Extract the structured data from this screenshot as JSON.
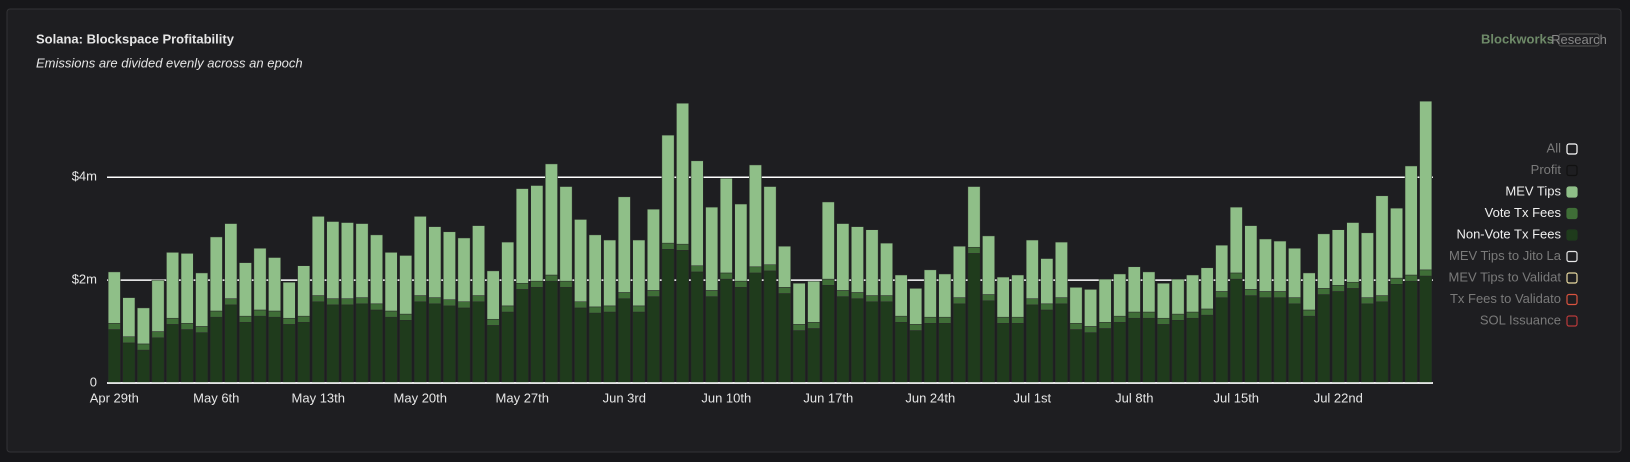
{
  "chart_data": {
    "type": "stacked_bar",
    "title": "Solana: Blockspace Profitability",
    "subtitle": "Emissions are divided evenly across an epoch",
    "brand": "Blockworks",
    "brand_tag": "Research",
    "categories": [
      "Apr 29th",
      null,
      null,
      null,
      null,
      null,
      null,
      "May 6th",
      null,
      null,
      null,
      null,
      null,
      null,
      "May 13th",
      null,
      null,
      null,
      null,
      null,
      null,
      "May 20th",
      null,
      null,
      null,
      null,
      null,
      null,
      "May 27th",
      null,
      null,
      null,
      null,
      null,
      null,
      "Jun 3rd",
      null,
      null,
      null,
      null,
      null,
      null,
      "Jun 10th",
      null,
      null,
      null,
      null,
      null,
      null,
      "Jun 17th",
      null,
      null,
      null,
      null,
      null,
      null,
      "Jun 24th",
      null,
      null,
      null,
      null,
      null,
      null,
      "Jul 1st",
      null,
      null,
      null,
      null,
      null,
      null,
      "Jul 8th",
      null,
      null,
      null,
      null,
      null,
      null,
      "Jul 15th",
      null,
      null,
      null,
      null,
      null,
      null,
      "Jul 22nd",
      null,
      null,
      null,
      null,
      null,
      null
    ],
    "series": [
      {
        "name": "Non-Vote Tx Fees",
        "color": "#1f3b1c",
        "values": [
          1.04,
          0.78,
          0.64,
          0.88,
          1.14,
          1.04,
          0.98,
          1.28,
          1.52,
          1.18,
          1.3,
          1.28,
          1.14,
          1.18,
          1.58,
          1.52,
          1.52,
          1.54,
          1.42,
          1.28,
          1.22,
          1.58,
          1.54,
          1.5,
          1.46,
          1.58,
          1.12,
          1.38,
          1.82,
          1.86,
          1.98,
          1.86,
          1.46,
          1.36,
          1.38,
          1.64,
          1.38,
          1.68,
          2.6,
          2.58,
          2.16,
          1.68,
          2.02,
          1.86,
          2.14,
          2.18,
          1.74,
          1.02,
          1.06,
          1.9,
          1.68,
          1.64,
          1.58,
          1.58,
          1.18,
          1.02,
          1.16,
          1.16,
          1.54,
          2.52,
          1.6,
          1.16,
          1.16,
          1.52,
          1.42,
          1.54,
          1.04,
          0.98,
          1.06,
          1.18,
          1.26,
          1.26,
          1.14,
          1.22,
          1.26,
          1.32,
          1.66,
          2.02,
          1.7,
          1.66,
          1.66,
          1.54,
          1.3,
          1.72,
          1.78,
          1.84,
          1.54,
          1.58,
          1.92,
          1.98,
          2.08
        ]
      },
      {
        "name": "Vote Tx Fees",
        "color": "#3f6e37",
        "values": [
          0.12,
          0.12,
          0.12,
          0.12,
          0.12,
          0.12,
          0.12,
          0.12,
          0.12,
          0.12,
          0.12,
          0.12,
          0.12,
          0.12,
          0.12,
          0.12,
          0.12,
          0.12,
          0.12,
          0.12,
          0.12,
          0.12,
          0.12,
          0.12,
          0.12,
          0.12,
          0.12,
          0.12,
          0.12,
          0.12,
          0.12,
          0.12,
          0.12,
          0.12,
          0.12,
          0.12,
          0.12,
          0.12,
          0.12,
          0.12,
          0.12,
          0.12,
          0.12,
          0.12,
          0.12,
          0.12,
          0.12,
          0.12,
          0.12,
          0.12,
          0.12,
          0.12,
          0.12,
          0.12,
          0.12,
          0.12,
          0.12,
          0.12,
          0.12,
          0.12,
          0.12,
          0.12,
          0.12,
          0.12,
          0.12,
          0.12,
          0.12,
          0.12,
          0.12,
          0.12,
          0.12,
          0.12,
          0.12,
          0.12,
          0.12,
          0.12,
          0.12,
          0.12,
          0.12,
          0.12,
          0.12,
          0.12,
          0.12,
          0.12,
          0.12,
          0.12,
          0.12,
          0.12,
          0.12,
          0.12,
          0.12
        ]
      },
      {
        "name": "MEV Tips",
        "color": "#8fbf88",
        "values": [
          1.0,
          0.76,
          0.7,
          1.0,
          1.28,
          1.36,
          1.04,
          1.44,
          1.46,
          1.04,
          1.2,
          1.04,
          0.7,
          0.98,
          1.54,
          1.5,
          1.48,
          1.44,
          1.34,
          1.14,
          1.14,
          1.54,
          1.38,
          1.32,
          1.24,
          1.36,
          0.94,
          1.24,
          1.84,
          1.86,
          2.16,
          1.84,
          1.6,
          1.4,
          1.28,
          1.86,
          1.28,
          1.58,
          2.1,
          2.74,
          2.04,
          1.62,
          1.84,
          1.5,
          1.98,
          1.52,
          0.8,
          0.8,
          0.8,
          1.5,
          1.3,
          1.28,
          1.28,
          1.02,
          0.8,
          0.7,
          0.92,
          0.84,
          1.0,
          1.18,
          1.14,
          0.78,
          0.82,
          1.14,
          0.88,
          1.08,
          0.7,
          0.72,
          0.84,
          0.82,
          0.88,
          0.78,
          0.68,
          0.68,
          0.72,
          0.8,
          0.9,
          1.28,
          1.24,
          1.02,
          0.98,
          0.96,
          0.72,
          1.06,
          1.08,
          1.16,
          1.26,
          1.94,
          1.36,
          2.12,
          3.28
        ]
      }
    ],
    "legend_top": [
      {
        "name": "All",
        "color": "#ffffff"
      },
      {
        "name": "Profit",
        "color": "#111111"
      }
    ],
    "legend_bottom": [
      {
        "name": "MEV Tips to Jito La",
        "color": "#e8e8e8"
      },
      {
        "name": "MEV Tips to Validat",
        "color": "#e8d9a0"
      },
      {
        "name": "Tx Fees to Validato",
        "color": "#d9533f"
      },
      {
        "name": "SOL Issuance",
        "color": "#b93a3a"
      }
    ],
    "ylim": [
      0,
      5.6
    ],
    "yticks": [
      0,
      {
        "value": 2,
        "label": "$2m"
      },
      {
        "value": 4,
        "label": "$4m"
      }
    ],
    "grid": true
  }
}
